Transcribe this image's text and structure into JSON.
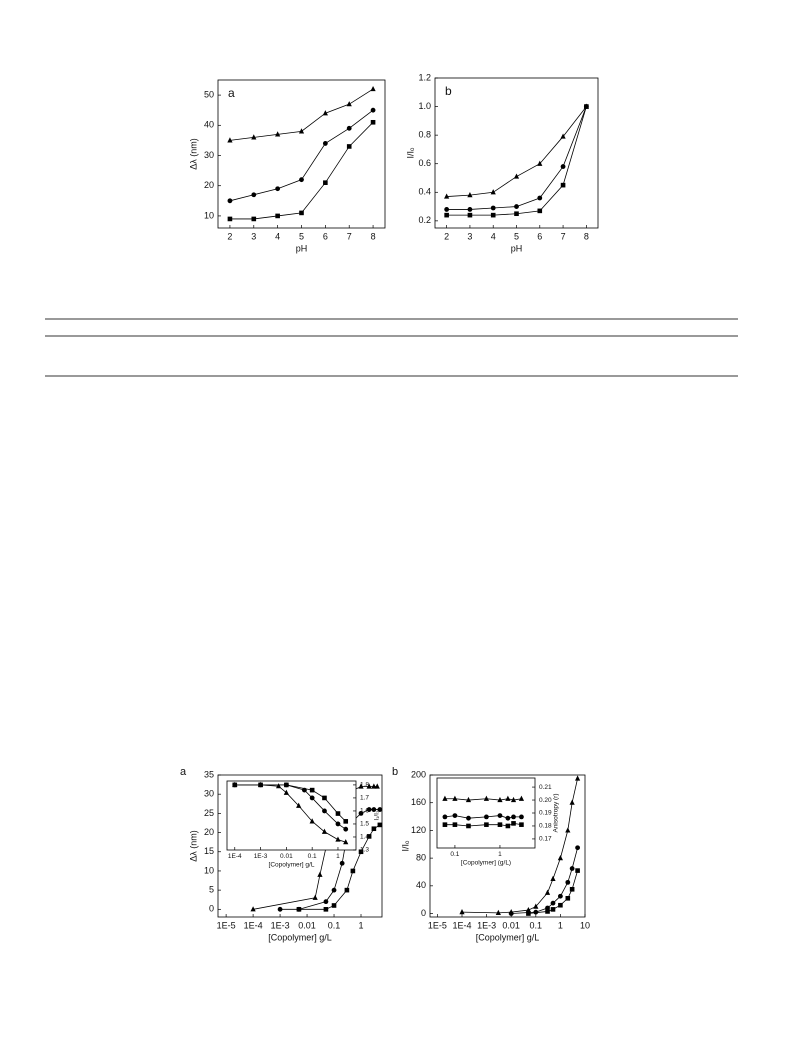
{
  "chart_data": [
    {
      "type": "scatter",
      "label": "a",
      "xlabel": "pH",
      "ylabel": "Δλ (nm)",
      "xlim": [
        1.5,
        8.5
      ],
      "xticks": [
        2,
        3,
        4,
        5,
        6,
        7,
        8
      ],
      "ylim": [
        6,
        55
      ],
      "yticks": [
        10,
        20,
        30,
        40,
        50
      ],
      "series": [
        {
          "marker": "triangle",
          "color": "#000000",
          "x": [
            2,
            3,
            4,
            5,
            6,
            7,
            8
          ],
          "values": [
            35,
            36,
            37,
            38,
            44,
            47,
            52
          ]
        },
        {
          "marker": "circle",
          "color": "#000000",
          "x": [
            2,
            3,
            4,
            5,
            6,
            7,
            8
          ],
          "values": [
            15,
            17,
            19,
            22,
            34,
            39,
            45
          ]
        },
        {
          "marker": "square",
          "color": "#000000",
          "x": [
            2,
            3,
            4,
            5,
            6,
            7,
            8
          ],
          "values": [
            9,
            9,
            10,
            11,
            21,
            33,
            41
          ]
        }
      ]
    },
    {
      "type": "scatter",
      "label": "b",
      "xlabel": "pH",
      "ylabel": "I/Iₒ",
      "xlim": [
        1.5,
        8.5
      ],
      "xticks": [
        2,
        3,
        4,
        5,
        6,
        7,
        8
      ],
      "ylim": [
        0.15,
        1.2
      ],
      "yticks": [
        0.2,
        0.4,
        0.6,
        0.8,
        {
          "value": 1,
          "label": "1.0"
        },
        1.2
      ],
      "series": [
        {
          "marker": "triangle",
          "color": "#000000",
          "x": [
            2,
            3,
            4,
            5,
            6,
            7,
            8
          ],
          "values": [
            0.37,
            0.38,
            0.4,
            0.51,
            0.6,
            0.79,
            1
          ]
        },
        {
          "marker": "circle",
          "color": "#000000",
          "x": [
            2,
            3,
            4,
            5,
            6,
            7,
            8
          ],
          "values": [
            0.28,
            0.28,
            0.29,
            0.3,
            0.36,
            0.58,
            1
          ]
        },
        {
          "marker": "square",
          "color": "#000000",
          "x": [
            2,
            3,
            4,
            5,
            6,
            7,
            8
          ],
          "values": [
            0.24,
            0.24,
            0.24,
            0.25,
            0.27,
            0.45,
            1
          ]
        }
      ]
    },
    {
      "type": "scatter",
      "label": "a",
      "xlabel": "[Copolymer] g/L",
      "ylabel": "Δλ (nm)",
      "xscale": "log",
      "xlim": [
        5e-06,
        6
      ],
      "xticks": [
        {
          "value": 1e-05,
          "label": "1E-5"
        },
        {
          "value": 0.0001,
          "label": "1E-4"
        },
        {
          "value": 0.001,
          "label": "1E-3"
        },
        0.01,
        0.1,
        1
      ],
      "ylim": [
        -2,
        35
      ],
      "yticks": [
        0,
        5,
        10,
        15,
        20,
        25,
        30,
        35
      ],
      "series": [
        {
          "marker": "triangle",
          "color": "#000000",
          "x": [
            0.0001,
            0.02,
            0.03,
            0.05,
            0.1,
            0.2,
            0.5,
            1,
            2,
            3,
            4
          ],
          "values": [
            0,
            3,
            9,
            16,
            27,
            30,
            31,
            32,
            32,
            32,
            32
          ]
        },
        {
          "marker": "circle",
          "color": "#000000",
          "x": [
            0.001,
            0.005,
            0.05,
            0.1,
            0.2,
            0.3,
            0.5,
            1,
            2,
            3,
            5
          ],
          "values": [
            0,
            0,
            2,
            5,
            12,
            19,
            23,
            25,
            26,
            26,
            26
          ]
        },
        {
          "marker": "square",
          "color": "#000000",
          "x": [
            0.005,
            0.05,
            0.1,
            0.3,
            0.5,
            1,
            2,
            3,
            5
          ],
          "values": [
            0,
            0,
            1,
            5,
            10,
            15,
            19,
            21,
            22
          ]
        }
      ]
    },
    {
      "type": "scatter",
      "xlabel": "[Copolymer] g/L",
      "ylabel": "I₁/I₃",
      "xscale": "log",
      "y_axis": "right",
      "xlim": [
        5e-05,
        5
      ],
      "xticks": [
        {
          "value": 0.0001,
          "label": "1E-4"
        },
        {
          "value": 0.001,
          "label": "1E-3"
        },
        0.01,
        0.1,
        1
      ],
      "ylim": [
        1.3,
        1.83
      ],
      "yticks": [
        1.3,
        1.4,
        1.5,
        1.6,
        1.7,
        1.8
      ],
      "series": [
        {
          "marker": "triangle",
          "color": "#000000",
          "x": [
            0.0001,
            0.001,
            0.005,
            0.01,
            0.03,
            0.1,
            0.3,
            1,
            2
          ],
          "values": [
            1.8,
            1.8,
            1.79,
            1.74,
            1.64,
            1.52,
            1.44,
            1.38,
            1.36
          ]
        },
        {
          "marker": "circle",
          "color": "#000000",
          "x": [
            0.0001,
            0.001,
            0.01,
            0.05,
            0.1,
            0.3,
            1,
            2
          ],
          "values": [
            1.8,
            1.8,
            1.8,
            1.76,
            1.7,
            1.6,
            1.5,
            1.46
          ]
        },
        {
          "marker": "square",
          "color": "#000000",
          "x": [
            0.0001,
            0.001,
            0.01,
            0.1,
            0.3,
            1,
            2
          ],
          "values": [
            1.8,
            1.8,
            1.8,
            1.76,
            1.7,
            1.58,
            1.52
          ]
        }
      ]
    },
    {
      "type": "scatter",
      "label": "b",
      "xlabel": "[Copolymer] g/L",
      "ylabel": "I/Iₒ",
      "xscale": "log",
      "xlim": [
        5e-06,
        10
      ],
      "xticks": [
        {
          "value": 1e-05,
          "label": "1E-5"
        },
        {
          "value": 0.0001,
          "label": "1E-4"
        },
        {
          "value": 0.001,
          "label": "1E-3"
        },
        0.01,
        0.1,
        1,
        10
      ],
      "ylim": [
        -5,
        200
      ],
      "yticks": [
        0,
        40,
        80,
        120,
        160,
        200
      ],
      "series": [
        {
          "marker": "triangle",
          "color": "#000000",
          "x": [
            0.0001,
            0.003,
            0.01,
            0.05,
            0.1,
            0.3,
            0.5,
            1,
            2,
            3,
            5
          ],
          "values": [
            2,
            1,
            2,
            5,
            10,
            30,
            50,
            80,
            120,
            160,
            195
          ]
        },
        {
          "marker": "circle",
          "color": "#000000",
          "x": [
            0.01,
            0.1,
            0.3,
            0.5,
            1,
            2,
            3,
            5
          ],
          "values": [
            0,
            2,
            8,
            15,
            25,
            45,
            65,
            95
          ]
        },
        {
          "marker": "square",
          "color": "#000000",
          "x": [
            0.05,
            0.3,
            0.5,
            1,
            2,
            3,
            5
          ],
          "values": [
            0,
            3,
            6,
            12,
            22,
            35,
            62
          ]
        }
      ]
    },
    {
      "type": "scatter",
      "xlabel": "[Copolymer] (g/L)",
      "ylabel": "Anisotropy (r)",
      "xscale": "log",
      "y_axis": "right",
      "xlim": [
        0.04,
        6
      ],
      "xticks": [
        0.1,
        1
      ],
      "ylim": [
        0.163,
        0.217
      ],
      "yticks": [
        0.17,
        0.18,
        0.19,
        {
          "value": 0.2,
          "label": "0.20"
        },
        0.21
      ],
      "series": [
        {
          "marker": "triangle",
          "color": "#000000",
          "x": [
            0.06,
            0.1,
            0.2,
            0.5,
            1,
            1.5,
            2,
            3
          ],
          "values": [
            0.201,
            0.201,
            0.2,
            0.201,
            0.2,
            0.201,
            0.2,
            0.201
          ]
        },
        {
          "marker": "circle",
          "color": "#000000",
          "x": [
            0.06,
            0.1,
            0.2,
            0.5,
            1,
            1.5,
            2,
            3
          ],
          "values": [
            0.187,
            0.188,
            0.186,
            0.187,
            0.188,
            0.186,
            0.187,
            0.187
          ]
        },
        {
          "marker": "square",
          "color": "#000000",
          "x": [
            0.06,
            0.1,
            0.2,
            0.5,
            1,
            1.5,
            2,
            3
          ],
          "values": [
            0.181,
            0.181,
            0.18,
            0.181,
            0.181,
            0.18,
            0.182,
            0.181
          ]
        }
      ]
    }
  ]
}
